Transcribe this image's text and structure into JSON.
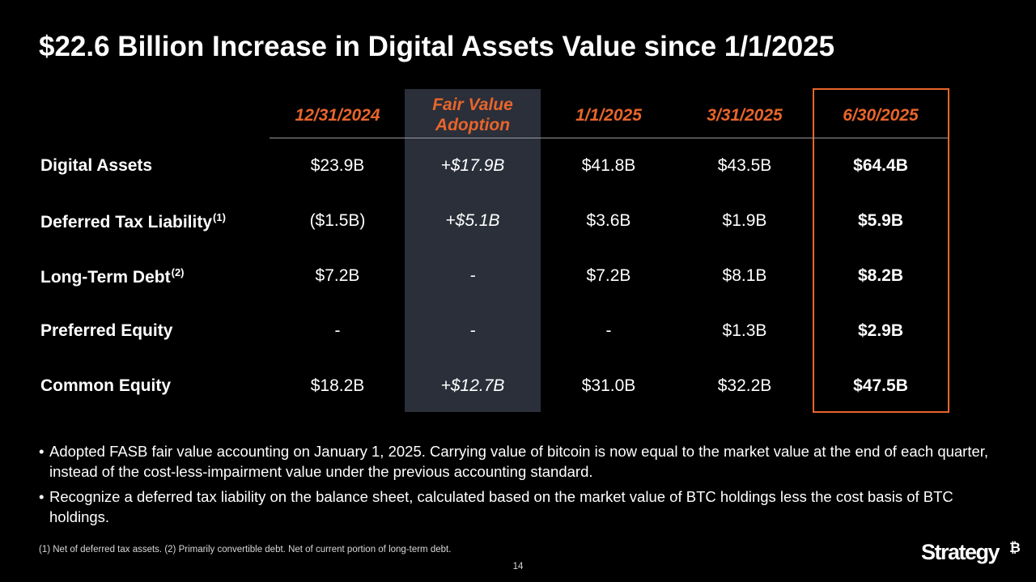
{
  "title": "$22.6 Billion Increase in Digital Assets Value since 1/1/2025",
  "columns": [
    {
      "line1": "12/31/2024",
      "line2": ""
    },
    {
      "line1": "Fair Value",
      "line2": "Adoption"
    },
    {
      "line1": "1/1/2025",
      "line2": ""
    },
    {
      "line1": "3/31/2025",
      "line2": ""
    },
    {
      "line1": "6/30/2025",
      "line2": ""
    }
  ],
  "rows": [
    {
      "label": "Digital Assets",
      "note": "",
      "values": [
        "$23.9B",
        "+$17.9B",
        "$41.8B",
        "$43.5B",
        "$64.4B"
      ]
    },
    {
      "label": "Deferred Tax Liability",
      "note": "(1)",
      "values": [
        "($1.5B)",
        "+$5.1B",
        "$3.6B",
        "$1.9B",
        "$5.9B"
      ]
    },
    {
      "label": "Long-Term Debt",
      "note": "(2)",
      "values": [
        "$7.2B",
        "-",
        "$7.2B",
        "$8.1B",
        "$8.2B"
      ]
    },
    {
      "label": "Preferred Equity",
      "note": "",
      "values": [
        "-",
        "-",
        "-",
        "$1.3B",
        "$2.9B"
      ]
    },
    {
      "label": "Common Equity",
      "note": "",
      "values": [
        "$18.2B",
        "+$12.7B",
        "$31.0B",
        "$32.2B",
        "$47.5B"
      ]
    }
  ],
  "bullets": [
    "Adopted FASB fair value accounting on January 1, 2025. Carrying value of bitcoin is now equal to the market value at the end of each quarter, instead of the cost-less-impairment value under the previous accounting standard.",
    "Recognize a deferred tax liability on the balance sheet, calculated based on the market value of BTC holdings less the cost basis of BTC holdings."
  ],
  "bullet_symbol": "•",
  "footnote": "(1) Net of deferred tax assets. (2) Primarily convertible debt. Net of current portion of long-term debt.",
  "page_number": "14",
  "logo": {
    "text": "Strategy",
    "mark": "₿"
  },
  "colors": {
    "accent": "#e8652b",
    "band": "#2a2f3a",
    "background": "#000000",
    "text": "#ffffff"
  }
}
